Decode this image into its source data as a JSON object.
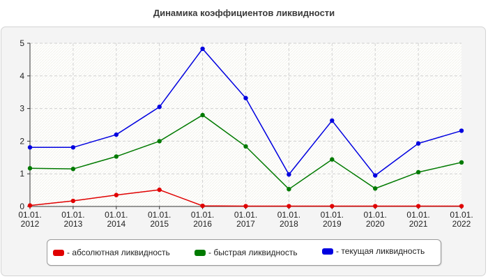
{
  "chart_data": {
    "type": "line",
    "title": "Динамика коэффициентов ликвидности",
    "xlabel": "",
    "ylabel": "",
    "categories": [
      [
        "01.01.",
        "2012"
      ],
      [
        "01.01.",
        "2013"
      ],
      [
        "01.01.",
        "2014"
      ],
      [
        "01.01.",
        "2015"
      ],
      [
        "01.01.",
        "2016"
      ],
      [
        "01.01.",
        "2017"
      ],
      [
        "01.01.",
        "2018"
      ],
      [
        "01.01.",
        "2019"
      ],
      [
        "01.01.",
        "2020"
      ],
      [
        "01.01.",
        "2021"
      ],
      [
        "01.01.",
        "2022"
      ]
    ],
    "ylim": [
      0,
      5
    ],
    "yticks": [
      "0",
      "1",
      "2",
      "3",
      "4",
      "5"
    ],
    "grid": true,
    "legend_position": "bottom",
    "series": [
      {
        "name": "- абсолютная ликвидность",
        "color": "#e00000",
        "values": [
          0.03,
          0.17,
          0.35,
          0.51,
          0.02,
          0.01,
          0.01,
          0.01,
          0.01,
          0.01,
          0.01
        ]
      },
      {
        "name": "- быстрая ликвидность",
        "color": "#007a00",
        "values": [
          1.17,
          1.15,
          1.53,
          2.0,
          2.8,
          1.84,
          0.53,
          1.44,
          0.55,
          1.05,
          1.35
        ]
      },
      {
        "name": "- текущая ликвидность",
        "color": "#0000e0",
        "values": [
          1.81,
          1.81,
          2.2,
          3.05,
          4.83,
          3.32,
          0.98,
          2.63,
          0.95,
          1.93,
          2.32
        ]
      }
    ]
  }
}
